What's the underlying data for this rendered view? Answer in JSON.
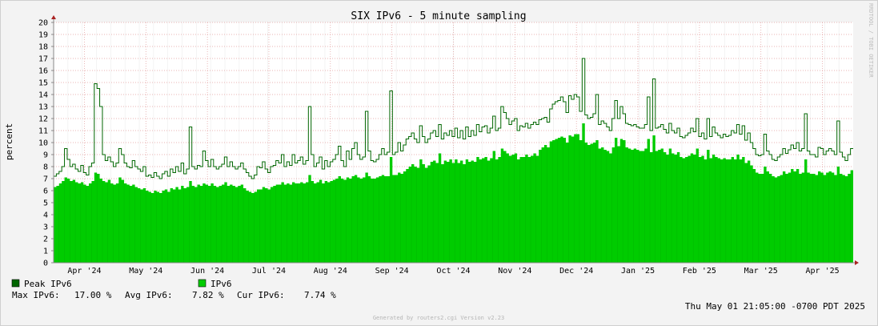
{
  "chart_data": {
    "type": "area",
    "title": "SIX IPv6 - 5 minute sampling",
    "ylabel": "percent",
    "xlabel": "",
    "ylim": [
      0,
      20
    ],
    "yticks": [
      0,
      1,
      2,
      3,
      4,
      5,
      6,
      7,
      8,
      9,
      10,
      11,
      12,
      13,
      14,
      15,
      16,
      17,
      18,
      19,
      20
    ],
    "x_labels": [
      "Apr '24",
      "May '24",
      "Jun '24",
      "Jul '24",
      "Aug '24",
      "Sep '24",
      "Oct '24",
      "Nov '24",
      "Dec '24",
      "Jan '25",
      "Feb '25",
      "Mar '25",
      "Apr '25"
    ],
    "grid": true,
    "legend_position": "bottom-left",
    "series": [
      {
        "name": "Peak IPv6",
        "style": "step-line",
        "color": "#006600",
        "values": [
          7.2,
          7.4,
          7.6,
          8.0,
          9.5,
          8.6,
          8.0,
          8.2,
          7.8,
          7.6,
          8.1,
          7.5,
          7.3,
          8.0,
          8.3,
          14.9,
          14.5,
          13.0,
          9.0,
          8.5,
          8.8,
          8.4,
          8.0,
          8.3,
          9.5,
          9.0,
          8.3,
          8.0,
          7.9,
          8.5,
          8.0,
          7.8,
          7.6,
          8.0,
          7.2,
          7.3,
          7.1,
          7.5,
          7.2,
          7.0,
          7.4,
          7.6,
          7.2,
          7.8,
          7.5,
          8.0,
          7.6,
          8.3,
          7.4,
          7.8,
          11.3,
          8.0,
          7.8,
          8.1,
          8.0,
          9.3,
          8.5,
          8.0,
          8.6,
          8.0,
          7.8,
          8.0,
          8.2,
          8.8,
          8.0,
          8.4,
          8.0,
          7.8,
          8.0,
          8.3,
          7.8,
          7.5,
          7.2,
          7.0,
          7.3,
          8.0,
          7.9,
          8.4,
          7.8,
          7.5,
          8.0,
          8.1,
          8.5,
          8.3,
          9.0,
          8.0,
          8.4,
          8.1,
          9.0,
          8.3,
          8.5,
          8.8,
          8.2,
          8.5,
          13.0,
          9.0,
          8.0,
          8.3,
          8.8,
          7.8,
          8.5,
          8.0,
          8.4,
          8.6,
          9.0,
          9.7,
          8.5,
          8.0,
          9.3,
          8.6,
          9.5,
          10.0,
          9.0,
          8.6,
          8.8,
          12.6,
          9.3,
          8.5,
          8.4,
          8.6,
          9.0,
          9.5,
          9.0,
          9.2,
          14.3,
          9.0,
          9.2,
          10.0,
          9.3,
          9.8,
          10.3,
          10.5,
          10.8,
          10.3,
          10.0,
          11.4,
          10.5,
          10.0,
          10.3,
          10.8,
          11.0,
          10.5,
          11.5,
          10.3,
          10.8,
          10.6,
          11.0,
          10.5,
          11.2,
          10.4,
          11.0,
          10.3,
          11.3,
          10.5,
          11.0,
          10.6,
          11.5,
          10.9,
          11.3,
          11.4,
          10.8,
          11.2,
          12.2,
          11.0,
          11.2,
          13.0,
          12.5,
          12.0,
          11.5,
          11.8,
          12.0,
          11.0,
          11.4,
          11.3,
          11.6,
          11.2,
          11.5,
          11.7,
          11.5,
          11.9,
          12.0,
          12.1,
          11.7,
          12.8,
          13.2,
          13.4,
          13.5,
          13.8,
          13.4,
          12.5,
          13.9,
          13.6,
          14.0,
          13.8,
          12.6,
          17.0,
          12.3,
          12.0,
          12.1,
          12.4,
          14.0,
          11.5,
          11.8,
          11.6,
          11.3,
          11.0,
          12.0,
          13.5,
          12.0,
          13.0,
          12.4,
          11.6,
          11.5,
          11.4,
          11.5,
          11.3,
          11.2,
          11.2,
          11.5,
          13.8,
          11.0,
          15.3,
          11.2,
          11.3,
          11.5,
          11.1,
          10.8,
          11.6,
          11.0,
          10.8,
          11.2,
          10.5,
          10.4,
          10.6,
          10.8,
          11.2,
          10.9,
          12.0,
          10.5,
          10.8,
          10.3,
          12.0,
          10.5,
          11.3,
          10.8,
          10.6,
          10.4,
          10.7,
          10.5,
          10.6,
          11.0,
          10.8,
          11.5,
          10.7,
          11.4,
          10.2,
          10.8,
          10.0,
          9.5,
          9.0,
          8.9,
          9.0,
          10.7,
          9.3,
          9.0,
          8.6,
          8.5,
          8.8,
          9.0,
          9.5,
          9.1,
          9.4,
          9.8,
          9.5,
          10.0,
          9.3,
          9.5,
          12.4,
          9.3,
          9.0,
          9.0,
          8.8,
          9.6,
          9.5,
          9.0,
          9.3,
          9.5,
          9.3,
          9.0,
          11.8,
          9.2,
          8.8,
          8.5,
          9.0,
          9.5
        ]
      },
      {
        "name": "IPv6",
        "style": "area",
        "color": "#00cc00",
        "values": [
          6.3,
          6.4,
          6.6,
          6.8,
          7.1,
          7.0,
          6.8,
          6.9,
          6.7,
          6.6,
          6.7,
          6.5,
          6.4,
          6.6,
          6.8,
          7.5,
          7.4,
          7.0,
          6.8,
          6.7,
          6.9,
          6.6,
          6.5,
          6.6,
          7.1,
          6.9,
          6.6,
          6.5,
          6.4,
          6.5,
          6.3,
          6.2,
          6.1,
          6.2,
          6.0,
          5.9,
          5.8,
          6.0,
          5.9,
          5.8,
          6.0,
          6.1,
          5.9,
          6.2,
          6.1,
          6.3,
          6.1,
          6.4,
          6.2,
          6.3,
          6.8,
          6.4,
          6.3,
          6.5,
          6.4,
          6.6,
          6.5,
          6.4,
          6.6,
          6.4,
          6.3,
          6.4,
          6.5,
          6.7,
          6.4,
          6.5,
          6.4,
          6.3,
          6.4,
          6.5,
          6.2,
          6.0,
          5.9,
          5.8,
          5.9,
          6.1,
          6.1,
          6.3,
          6.2,
          6.1,
          6.3,
          6.4,
          6.5,
          6.5,
          6.7,
          6.5,
          6.6,
          6.5,
          6.7,
          6.6,
          6.6,
          6.7,
          6.6,
          6.7,
          7.3,
          6.8,
          6.6,
          6.7,
          6.9,
          6.6,
          6.8,
          6.7,
          6.8,
          6.9,
          7.0,
          7.2,
          7.0,
          6.9,
          7.1,
          7.0,
          7.2,
          7.3,
          7.1,
          7.0,
          7.1,
          7.5,
          7.2,
          7.0,
          7.0,
          7.1,
          7.2,
          7.3,
          7.2,
          7.2,
          8.8,
          7.3,
          7.3,
          7.5,
          7.4,
          7.6,
          7.8,
          8.0,
          8.2,
          8.0,
          7.9,
          8.6,
          8.2,
          7.9,
          8.1,
          8.4,
          8.5,
          8.3,
          9.1,
          8.2,
          8.5,
          8.4,
          8.6,
          8.3,
          8.6,
          8.3,
          8.5,
          8.2,
          8.6,
          8.4,
          8.5,
          8.4,
          8.8,
          8.6,
          8.7,
          8.8,
          8.5,
          8.7,
          9.3,
          8.6,
          8.8,
          9.5,
          9.3,
          9.1,
          8.9,
          9.0,
          9.1,
          8.6,
          8.8,
          8.8,
          9.0,
          8.8,
          8.9,
          9.1,
          8.9,
          9.4,
          9.6,
          9.8,
          9.6,
          10.1,
          10.2,
          10.3,
          10.4,
          10.5,
          10.4,
          10.0,
          10.6,
          10.5,
          10.7,
          10.7,
          10.2,
          11.6,
          10.0,
          9.8,
          9.9,
          10.0,
          10.2,
          9.5,
          9.6,
          9.4,
          9.3,
          9.1,
          9.6,
          10.4,
          9.7,
          10.3,
          10.2,
          9.6,
          9.5,
          9.4,
          9.5,
          9.4,
          9.3,
          9.3,
          9.5,
          10.3,
          9.2,
          10.6,
          9.3,
          9.4,
          9.5,
          9.2,
          9.0,
          9.5,
          9.1,
          9.0,
          9.2,
          8.8,
          8.7,
          8.8,
          8.9,
          9.1,
          9.0,
          9.5,
          8.8,
          8.9,
          8.6,
          9.4,
          8.7,
          9.0,
          8.8,
          8.7,
          8.6,
          8.7,
          8.6,
          8.6,
          8.8,
          8.6,
          9.0,
          8.6,
          8.8,
          8.3,
          8.5,
          8.1,
          7.8,
          7.5,
          7.4,
          7.4,
          8.0,
          7.6,
          7.4,
          7.2,
          7.1,
          7.2,
          7.3,
          7.6,
          7.4,
          7.5,
          7.8,
          7.6,
          7.8,
          7.4,
          7.5,
          8.6,
          7.5,
          7.4,
          7.4,
          7.3,
          7.6,
          7.5,
          7.3,
          7.5,
          7.6,
          7.5,
          7.3,
          8.0,
          7.4,
          7.3,
          7.2,
          7.4,
          7.7
        ]
      }
    ],
    "stats": {
      "max_label": "Max IPv6:",
      "max_value": "17.00 %",
      "avg_label": "Avg IPv6:",
      "avg_value": "7.82 %",
      "cur_label": "Cur IPv6:",
      "cur_value": "7.74 %"
    },
    "timestamp": "Thu May 01 21:05:00 -0700 PDT 2025",
    "watermark": "RRDTOOL / TOBI OETIKER",
    "footer": "Generated by routers2.cgi Version v2.23"
  }
}
